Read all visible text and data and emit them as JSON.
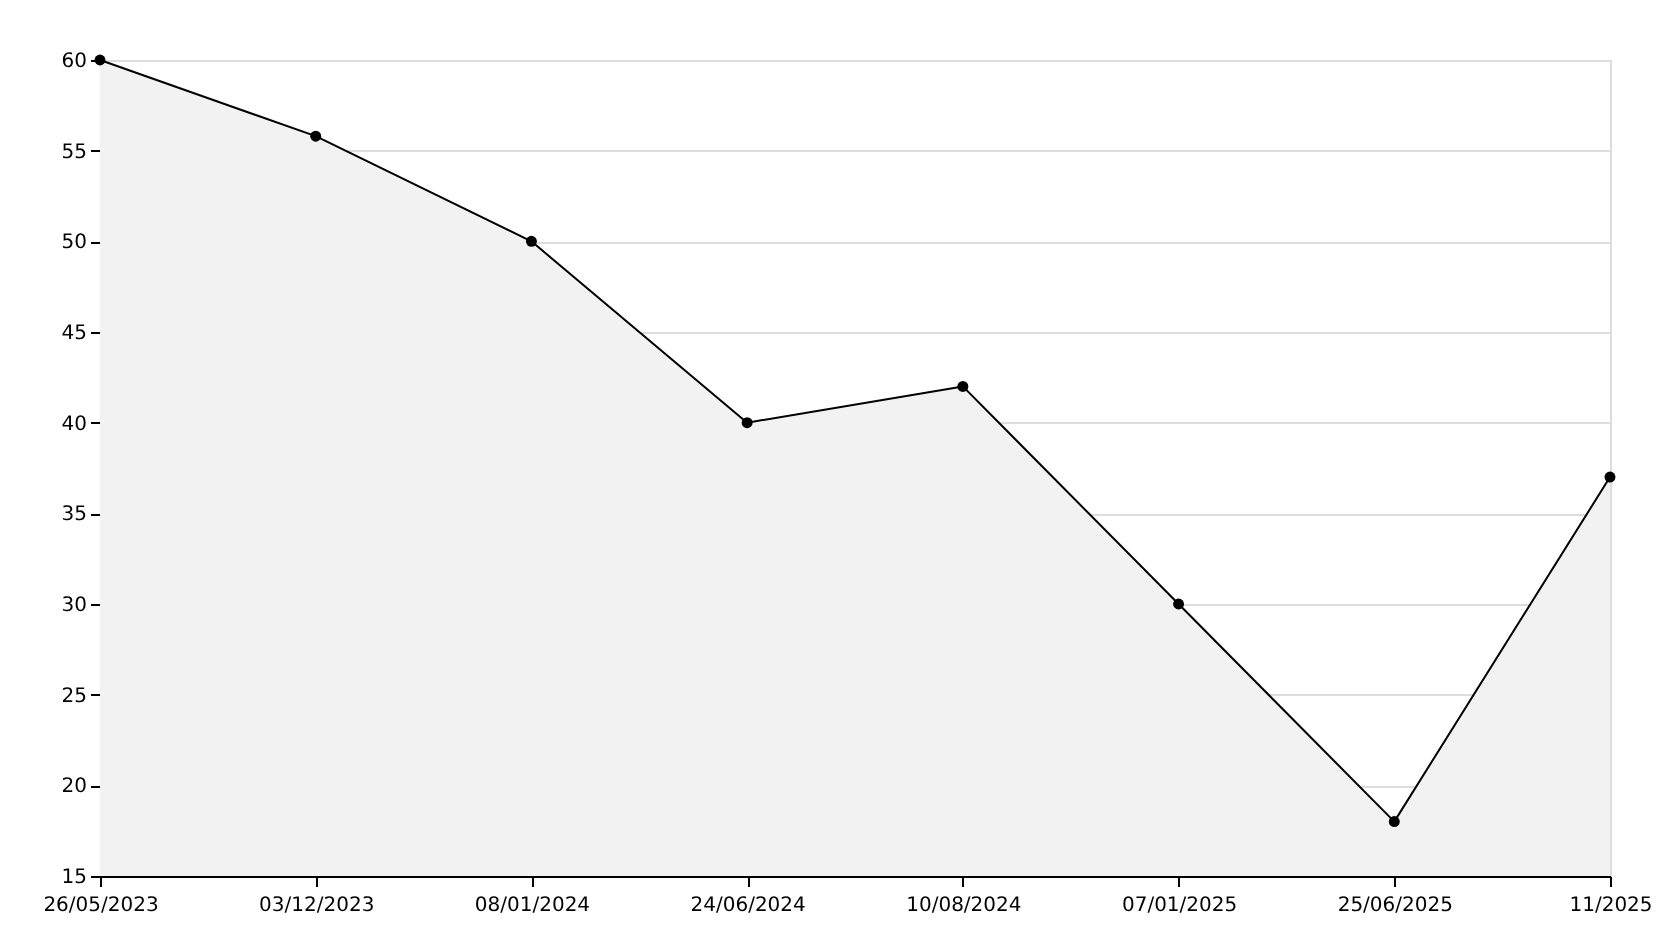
{
  "chart_data": {
    "type": "area",
    "categories": [
      "26/05/2023",
      "03/12/2023",
      "08/01/2024",
      "24/06/2024",
      "10/08/2024",
      "07/01/2025",
      "25/06/2025",
      "11/2025"
    ],
    "series": [
      {
        "color": "#000000",
        "values": [
          60,
          55.8,
          50,
          40,
          42,
          30,
          18,
          37
        ]
      }
    ],
    "ylim": [
      15,
      60
    ],
    "yticks": [
      15,
      20,
      25,
      30,
      35,
      40,
      45,
      50,
      55,
      60
    ],
    "grid": "y",
    "marker": "circle",
    "line_style": "solid"
  }
}
